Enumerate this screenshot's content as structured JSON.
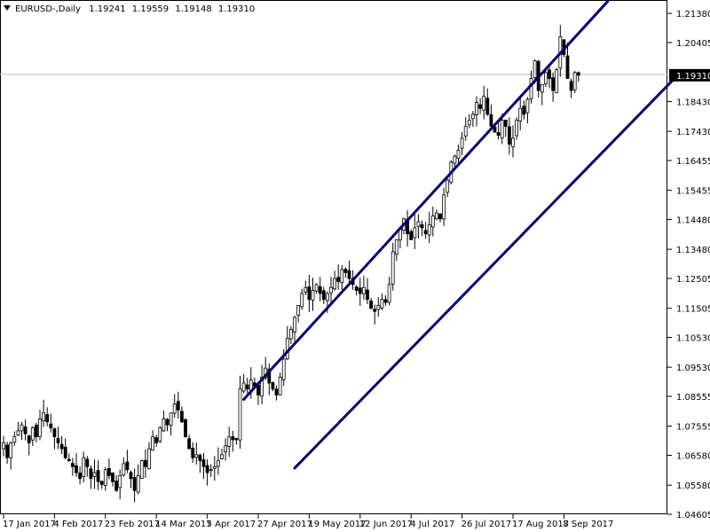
{
  "header": {
    "symbol": "EURUSD-",
    "timeframe": "Daily",
    "open": "1.19241",
    "high": "1.19559",
    "low": "1.19148",
    "close": "1.19310"
  },
  "chart_data": {
    "type": "candlestick",
    "grid": false,
    "price_axis": {
      "min": 1.04605,
      "max": 1.2183,
      "ticks": [
        "1.21380",
        "1.20405",
        "1.19310",
        "1.18430",
        "1.17430",
        "1.16455",
        "1.15455",
        "1.14480",
        "1.13480",
        "1.12505",
        "1.11505",
        "1.10530",
        "1.09530",
        "1.08555",
        "1.07555",
        "1.06580",
        "1.05580",
        "1.04605"
      ],
      "tick_values": [
        1.2138,
        1.20405,
        1.1931,
        1.1843,
        1.1743,
        1.16455,
        1.15455,
        1.1448,
        1.1348,
        1.12505,
        1.11505,
        1.1053,
        1.0953,
        1.08555,
        1.07555,
        1.0658,
        1.0558,
        1.04605
      ],
      "current_price_label": "1.19310",
      "current_price": 1.1931
    },
    "time_axis": {
      "labels": [
        {
          "text": "17 Jan 2017",
          "bar": 0
        },
        {
          "text": "4 Feb 2017",
          "bar": 14
        },
        {
          "text": "23 Feb 2017",
          "bar": 28
        },
        {
          "text": "14 Mar 2017",
          "bar": 42
        },
        {
          "text": "5 Apr 2017",
          "bar": 56
        },
        {
          "text": "27 Apr 2017",
          "bar": 70
        },
        {
          "text": "19 May 2017",
          "bar": 84
        },
        {
          "text": "12 Jun 2017",
          "bar": 98
        },
        {
          "text": "4 Jul 2017",
          "bar": 112
        },
        {
          "text": "26 Jul 2017",
          "bar": 126
        },
        {
          "text": "17 Aug 2017",
          "bar": 140
        },
        {
          "text": "8 Sep 2017",
          "bar": 154
        }
      ]
    },
    "closes": [
      1.07,
      1.065,
      1.07,
      1.072,
      1.074,
      1.076,
      1.073,
      1.07,
      1.075,
      1.072,
      1.078,
      1.08,
      1.077,
      1.075,
      1.072,
      1.07,
      1.068,
      1.065,
      1.064,
      1.062,
      1.06,
      1.058,
      1.065,
      1.062,
      1.058,
      1.06,
      1.057,
      1.056,
      1.061,
      1.059,
      1.057,
      1.054,
      1.059,
      1.063,
      1.061,
      1.058,
      1.054,
      1.059,
      1.064,
      1.062,
      1.068,
      1.072,
      1.07,
      1.075,
      1.078,
      1.076,
      1.08,
      1.083,
      1.081,
      1.077,
      1.072,
      1.068,
      1.065,
      1.066,
      1.064,
      1.062,
      1.06,
      1.061,
      1.062,
      1.064,
      1.066,
      1.069,
      1.072,
      1.071,
      1.071,
      1.088,
      1.09,
      1.088,
      1.091,
      1.089,
      1.086,
      1.092,
      1.095,
      1.09,
      1.088,
      1.086,
      1.092,
      1.098,
      1.105,
      1.108,
      1.112,
      1.116,
      1.12,
      1.122,
      1.118,
      1.121,
      1.123,
      1.12,
      1.118,
      1.12,
      1.122,
      1.125,
      1.124,
      1.128,
      1.127,
      1.125,
      1.123,
      1.121,
      1.12,
      1.122,
      1.118,
      1.115,
      1.114,
      1.116,
      1.118,
      1.117,
      1.123,
      1.134,
      1.138,
      1.142,
      1.145,
      1.14,
      1.138,
      1.142,
      1.144,
      1.142,
      1.14,
      1.143,
      1.146,
      1.147,
      1.145,
      1.153,
      1.158,
      1.164,
      1.166,
      1.168,
      1.172,
      1.176,
      1.178,
      1.18,
      1.184,
      1.182,
      1.186,
      1.18,
      1.176,
      1.174,
      1.173,
      1.178,
      1.176,
      1.17,
      1.172,
      1.178,
      1.182,
      1.18,
      1.185,
      1.192,
      1.198,
      1.188,
      1.19,
      1.194,
      1.192,
      1.188,
      1.195,
      1.206,
      1.2,
      1.192,
      1.188,
      1.194,
      1.1931
    ],
    "channel": {
      "upper": {
        "from": {
          "bar": 66,
          "price": 1.0845
        },
        "to": {
          "bar": 166,
          "price": 1.2178
        }
      },
      "lower": {
        "from": {
          "bar": 80,
          "price": 1.0615
        },
        "to": {
          "bar": 185,
          "price": 1.1928
        }
      }
    },
    "colors": {
      "channel": "#000066",
      "candle": "#000000",
      "background": "#ffffff",
      "price_line": "#c0c0c0"
    }
  }
}
